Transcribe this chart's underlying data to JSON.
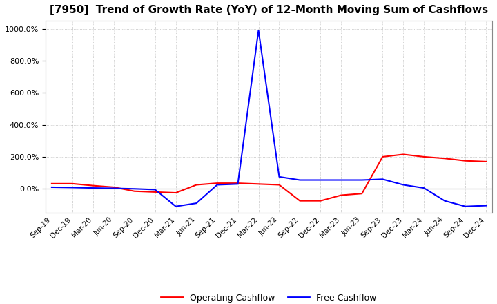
{
  "title": "[7950]  Trend of Growth Rate (YoY) of 12-Month Moving Sum of Cashflows",
  "title_fontsize": 11,
  "ylim": [
    -150,
    1050
  ],
  "yticks": [
    0.0,
    200.0,
    400.0,
    600.0,
    800.0,
    1000.0
  ],
  "background_color": "#ffffff",
  "grid_color": "#aaaaaa",
  "legend_items": [
    "Operating Cashflow",
    "Free Cashflow"
  ],
  "legend_colors": [
    "#ff0000",
    "#0000ff"
  ],
  "x_labels": [
    "Sep-19",
    "Dec-19",
    "Mar-20",
    "Jun-20",
    "Sep-20",
    "Dec-20",
    "Mar-21",
    "Jun-21",
    "Sep-21",
    "Dec-21",
    "Mar-22",
    "Jun-22",
    "Sep-22",
    "Dec-22",
    "Mar-23",
    "Jun-23",
    "Sep-23",
    "Dec-23",
    "Mar-24",
    "Jun-24",
    "Sep-24",
    "Dec-24"
  ],
  "operating_cashflow": [
    32,
    32,
    20,
    10,
    -15,
    -20,
    -25,
    25,
    35,
    35,
    30,
    25,
    -75,
    -75,
    -40,
    -30,
    200,
    215,
    200,
    190,
    175,
    170
  ],
  "free_cashflow": [
    10,
    8,
    5,
    3,
    0,
    -5,
    -110,
    -90,
    25,
    30,
    990,
    75,
    55,
    55,
    55,
    55,
    60,
    25,
    5,
    -75,
    -110,
    -105
  ]
}
